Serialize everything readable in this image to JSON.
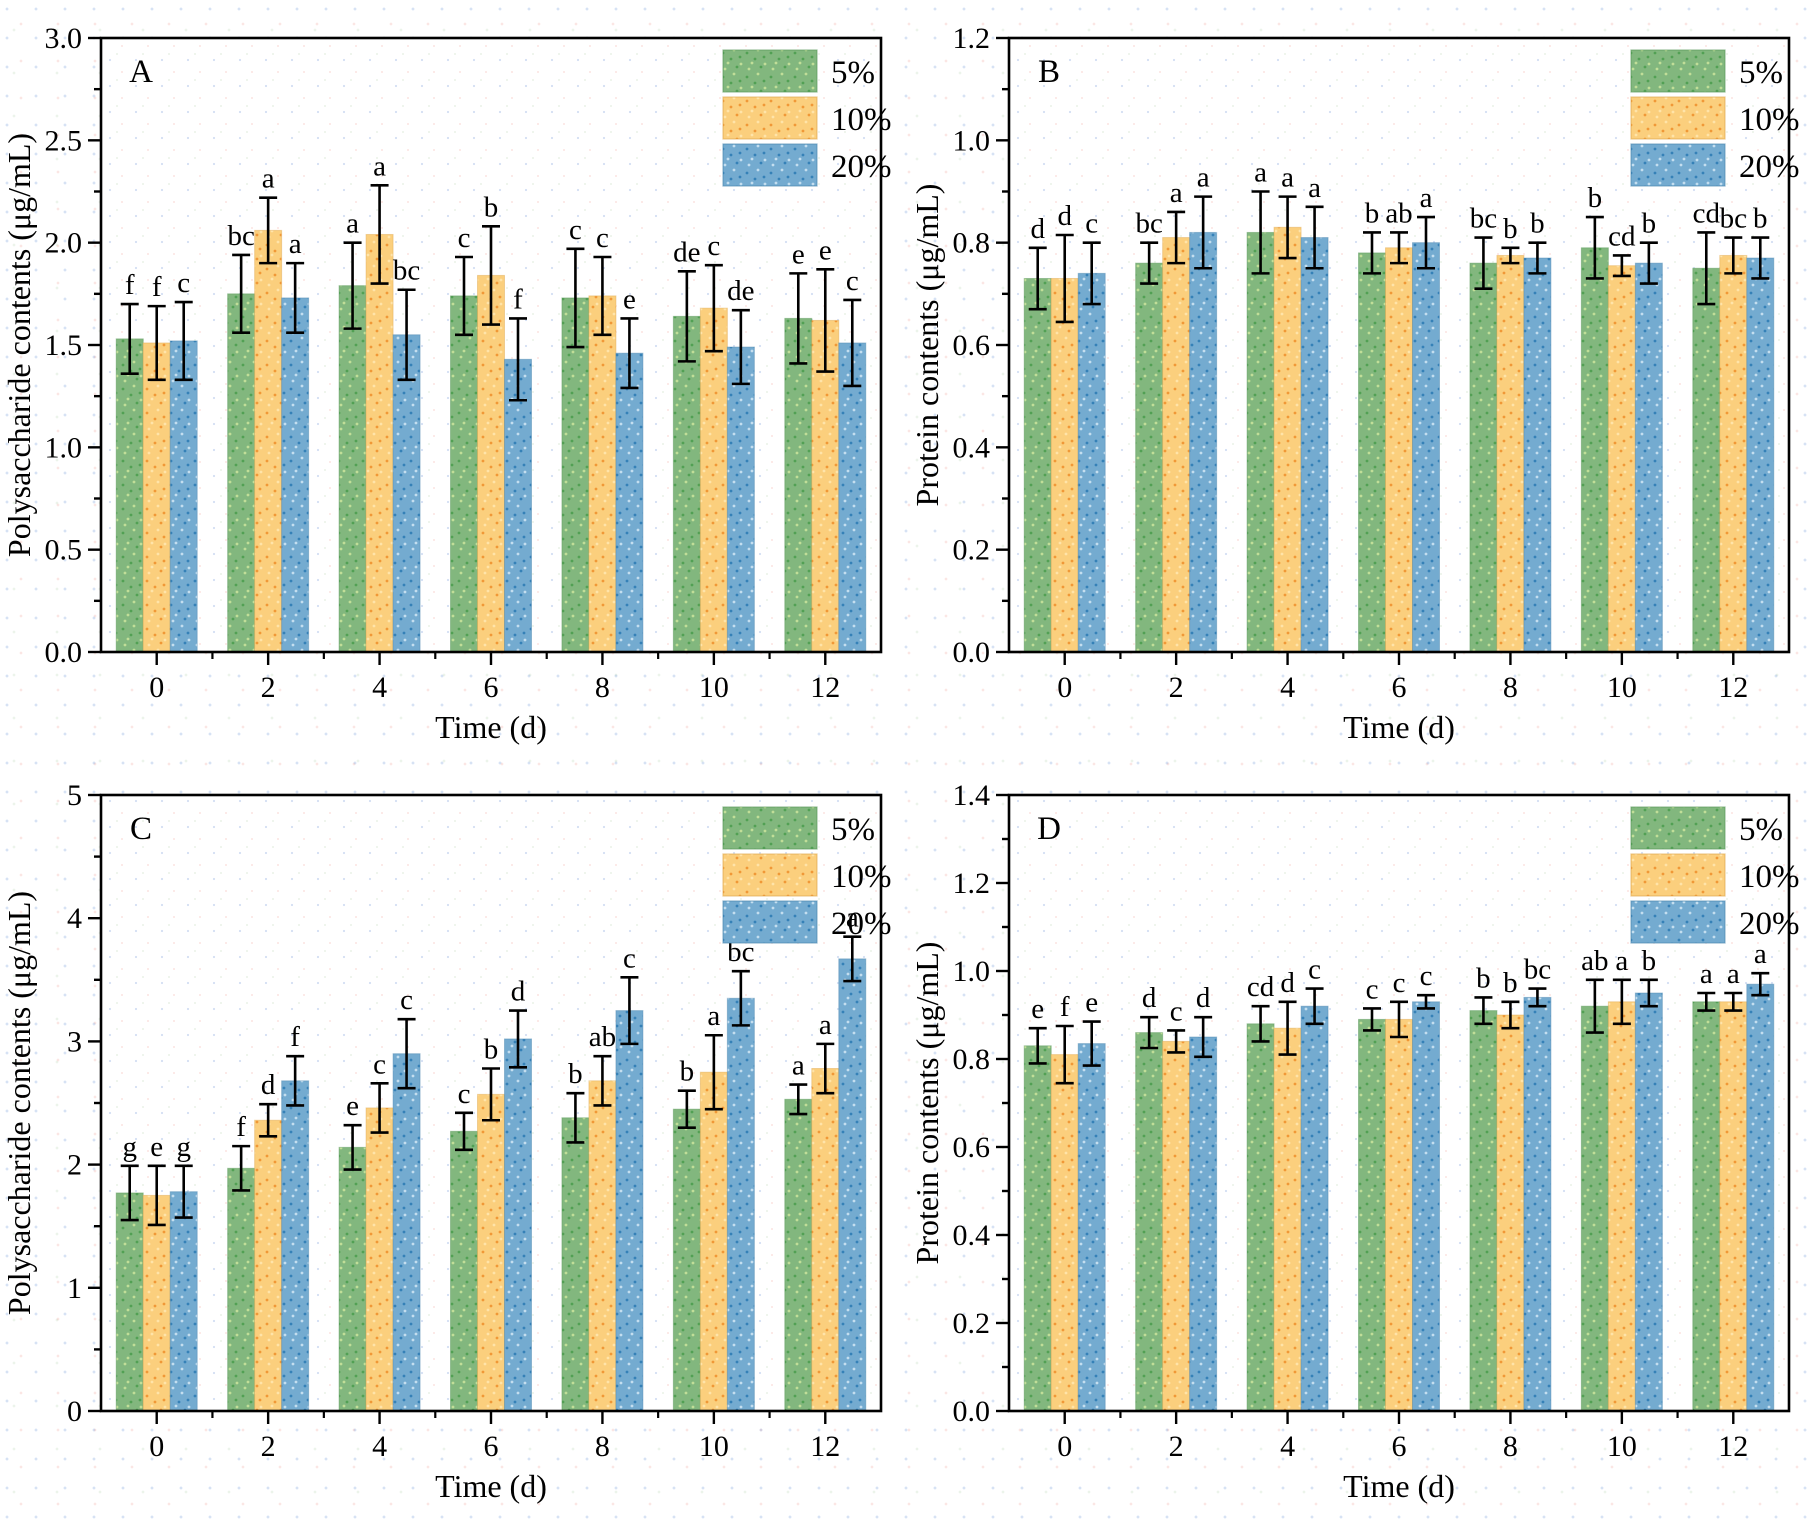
{
  "figure": {
    "description_labels": {
      "time_axis_label": "Time (d)",
      "polysaccharide_axis_label": "Polysaccharide contents (μg/mL)",
      "protein_axis_label": "Protein contents (μg/mL)"
    },
    "panel_letters": [
      "A",
      "B",
      "C",
      "D"
    ]
  },
  "legend": {
    "labels": [
      "5%",
      "10%",
      "20%"
    ],
    "position": "top-right"
  },
  "colors": {
    "series_fill": [
      "#82b77e",
      "#fbcf7d",
      "#74abd0"
    ],
    "series_dot_accents": [
      [
        "#4d9e50",
        "#c8e39b"
      ],
      [
        "#ef9330",
        "#ffe7ae"
      ],
      [
        "#2f7cb5",
        "#cde4f3"
      ]
    ],
    "series_edge": [
      "#5a9a5c",
      "#e0a94f",
      "#4d88b0"
    ],
    "axis_color": "#000000",
    "errorbar_color": "#000000",
    "text_color": "#000000"
  },
  "chart_data": [
    {
      "panel": "A",
      "type": "bar",
      "ylabel": "Polysaccharide contents (μg/mL)",
      "xlabel": "Time (d)",
      "ylim": [
        0,
        3.0
      ],
      "ymajor": 0.5,
      "yminor": 0.25,
      "ydecimals": 1,
      "grid": false,
      "legend_position": "top-right",
      "categories": [
        0,
        2,
        4,
        6,
        8,
        10,
        12
      ],
      "series": [
        {
          "name": "5%",
          "values": [
            1.53,
            1.75,
            1.79,
            1.74,
            1.73,
            1.64,
            1.63
          ],
          "errors": [
            0.17,
            0.19,
            0.21,
            0.19,
            0.24,
            0.22,
            0.22
          ],
          "letters": [
            "f",
            "bc",
            "a",
            "c",
            "c",
            "de",
            "e"
          ]
        },
        {
          "name": "10%",
          "values": [
            1.51,
            2.06,
            2.04,
            1.84,
            1.74,
            1.68,
            1.62
          ],
          "errors": [
            0.18,
            0.16,
            0.24,
            0.24,
            0.19,
            0.21,
            0.25
          ],
          "letters": [
            "f",
            "a",
            "a",
            "b",
            "c",
            "c",
            "e"
          ]
        },
        {
          "name": "20%",
          "values": [
            1.52,
            1.73,
            1.55,
            1.43,
            1.46,
            1.49,
            1.51
          ],
          "errors": [
            0.19,
            0.17,
            0.22,
            0.2,
            0.17,
            0.18,
            0.21
          ],
          "letters": [
            "c",
            "a",
            "bc",
            "f",
            "e",
            "de",
            "c"
          ]
        }
      ]
    },
    {
      "panel": "B",
      "type": "bar",
      "ylabel": "Protein contents (μg/mL)",
      "xlabel": "Time (d)",
      "ylim": [
        0,
        1.2
      ],
      "ymajor": 0.2,
      "yminor": 0.1,
      "ydecimals": 1,
      "grid": false,
      "legend_position": "top-right",
      "categories": [
        0,
        2,
        4,
        6,
        8,
        10,
        12
      ],
      "series": [
        {
          "name": "5%",
          "values": [
            0.73,
            0.76,
            0.82,
            0.78,
            0.76,
            0.79,
            0.75
          ],
          "errors": [
            0.06,
            0.04,
            0.08,
            0.04,
            0.05,
            0.06,
            0.07
          ],
          "letters": [
            "d",
            "bc",
            "a",
            "b",
            "bc",
            "b",
            "cd"
          ]
        },
        {
          "name": "10%",
          "values": [
            0.73,
            0.81,
            0.83,
            0.79,
            0.775,
            0.755,
            0.775
          ],
          "errors": [
            0.085,
            0.05,
            0.06,
            0.03,
            0.015,
            0.02,
            0.035
          ],
          "letters": [
            "d",
            "a",
            "a",
            "ab",
            "b",
            "cd",
            "bc"
          ]
        },
        {
          "name": "20%",
          "values": [
            0.74,
            0.82,
            0.81,
            0.8,
            0.77,
            0.76,
            0.77
          ],
          "errors": [
            0.06,
            0.07,
            0.06,
            0.05,
            0.03,
            0.04,
            0.04
          ],
          "letters": [
            "c",
            "a",
            "a",
            "a",
            "b",
            "b",
            "b"
          ]
        }
      ]
    },
    {
      "panel": "C",
      "type": "bar",
      "ylabel": "Polysaccharide contents (μg/mL)",
      "xlabel": "Time (d)",
      "ylim": [
        0,
        5
      ],
      "ymajor": 1,
      "yminor": 0.5,
      "ydecimals": 0,
      "grid": false,
      "legend_position": "top-right",
      "categories": [
        0,
        2,
        4,
        6,
        8,
        10,
        12
      ],
      "series": [
        {
          "name": "5%",
          "values": [
            1.77,
            1.97,
            2.14,
            2.27,
            2.38,
            2.45,
            2.53
          ],
          "errors": [
            0.22,
            0.18,
            0.18,
            0.15,
            0.2,
            0.15,
            0.12
          ],
          "letters": [
            "g",
            "f",
            "e",
            "c",
            "b",
            "b",
            "a"
          ]
        },
        {
          "name": "10%",
          "values": [
            1.75,
            2.36,
            2.46,
            2.57,
            2.68,
            2.75,
            2.78
          ],
          "errors": [
            0.24,
            0.13,
            0.2,
            0.21,
            0.2,
            0.3,
            0.2
          ],
          "letters": [
            "e",
            "d",
            "c",
            "b",
            "ab",
            "a",
            "a"
          ]
        },
        {
          "name": "20%",
          "values": [
            1.78,
            2.68,
            2.9,
            3.02,
            3.25,
            3.35,
            3.67
          ],
          "errors": [
            0.21,
            0.2,
            0.28,
            0.23,
            0.27,
            0.22,
            0.18
          ],
          "letters": [
            "g",
            "f",
            "c",
            "d",
            "c",
            "bc",
            "a"
          ]
        }
      ]
    },
    {
      "panel": "D",
      "type": "bar",
      "ylabel": "Protein contents (μg/mL)",
      "xlabel": "Time (d)",
      "ylim": [
        0,
        1.4
      ],
      "ymajor": 0.2,
      "yminor": 0.1,
      "ydecimals": 1,
      "grid": false,
      "legend_position": "top-right",
      "categories": [
        0,
        2,
        4,
        6,
        8,
        10,
        12
      ],
      "series": [
        {
          "name": "5%",
          "values": [
            0.83,
            0.86,
            0.88,
            0.89,
            0.91,
            0.92,
            0.93
          ],
          "errors": [
            0.04,
            0.035,
            0.04,
            0.025,
            0.03,
            0.06,
            0.02
          ],
          "letters": [
            "e",
            "d",
            "cd",
            "c",
            "b",
            "ab",
            "a"
          ]
        },
        {
          "name": "10%",
          "values": [
            0.81,
            0.84,
            0.87,
            0.89,
            0.9,
            0.93,
            0.93
          ],
          "errors": [
            0.065,
            0.025,
            0.06,
            0.04,
            0.03,
            0.05,
            0.02
          ],
          "letters": [
            "f",
            "c",
            "d",
            "c",
            "b",
            "a",
            "a"
          ]
        },
        {
          "name": "20%",
          "values": [
            0.835,
            0.85,
            0.92,
            0.93,
            0.94,
            0.95,
            0.97
          ],
          "errors": [
            0.05,
            0.045,
            0.04,
            0.015,
            0.02,
            0.03,
            0.025
          ],
          "letters": [
            "e",
            "d",
            "c",
            "c",
            "bc",
            "b",
            "a"
          ]
        }
      ]
    }
  ]
}
